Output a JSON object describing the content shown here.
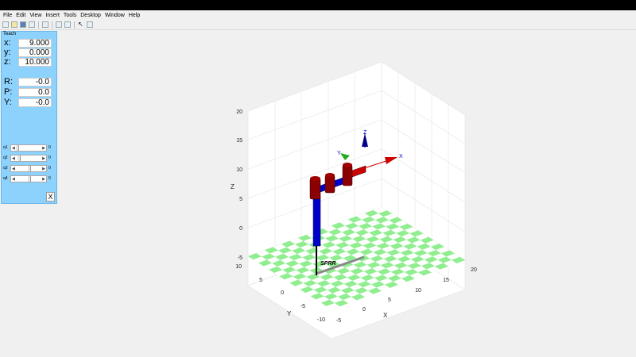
{
  "menu": [
    "File",
    "Edit",
    "View",
    "Insert",
    "Tools",
    "Desktop",
    "Window",
    "Help"
  ],
  "teach": {
    "title": "Teach",
    "position": [
      {
        "label": "x:",
        "value": "9.000"
      },
      {
        "label": "y:",
        "value": "0.000"
      },
      {
        "label": "z:",
        "value": "10.000"
      }
    ],
    "orientation": [
      {
        "label": "R:",
        "value": "-0.0"
      },
      {
        "label": "P:",
        "value": "0.0"
      },
      {
        "label": "Y:",
        "value": "-0.0"
      }
    ],
    "joints": [
      {
        "label": "q1",
        "value": "0",
        "level": 0.0
      },
      {
        "label": "q2",
        "value": "0",
        "level": 0.05
      },
      {
        "label": "q3",
        "value": "0",
        "level": 0.45
      },
      {
        "label": "q4",
        "value": "0",
        "level": 0.45
      }
    ],
    "close_label": "X"
  },
  "plot": {
    "robot_name": "SPRR",
    "z_label": "Z",
    "x_label": "X",
    "y_label": "Y",
    "z_ticks": [
      "20",
      "15",
      "10",
      "5",
      "0",
      "-5"
    ],
    "x_ticks": [
      "-5",
      "0",
      "5",
      "10",
      "15",
      "20"
    ],
    "y_ticks": [
      "10",
      "5",
      "0",
      "-5",
      "-10"
    ],
    "axis_labels": {
      "x": "X",
      "y": "Y",
      "z": "Z"
    },
    "colors": {
      "floor_a": "#90ee90",
      "floor_b": "#ffffff",
      "link_blue": "#0000cc",
      "joint_red": "#8b0000"
    }
  }
}
